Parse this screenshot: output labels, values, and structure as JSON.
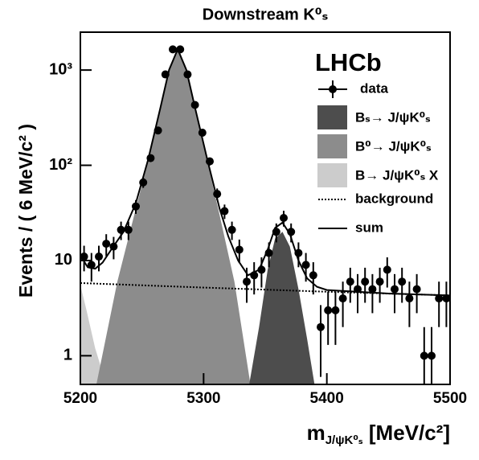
{
  "chart_data": {
    "type": "errorbar",
    "title": "Downstream K⁰ₛ",
    "y_label": "Events / ( 6 MeV/c² )",
    "x_label_symbol": "m",
    "x_label_subscript": "J/ψK⁰ₛ",
    "x_label_unit": " [MeV/c²]",
    "annotation": "LHCb",
    "log_y": true,
    "xlim": [
      5200,
      5500
    ],
    "ylim": [
      0.5,
      2500
    ],
    "xticks": [
      5200,
      5300,
      5400,
      5500
    ],
    "yticks": [
      1,
      10,
      {
        "value": 100,
        "label": "10²"
      },
      {
        "value": 1000,
        "label": "10³"
      }
    ],
    "data": {
      "name": "data",
      "color": "#000000",
      "x": [
        5203,
        5209,
        5215,
        5221,
        5227,
        5233,
        5239,
        5245,
        5251,
        5257,
        5263,
        5269,
        5275,
        5281,
        5287,
        5293,
        5299,
        5305,
        5311,
        5317,
        5323,
        5329,
        5335,
        5341,
        5347,
        5353,
        5359,
        5365,
        5371,
        5377,
        5383,
        5389,
        5395,
        5401,
        5407,
        5413,
        5419,
        5425,
        5431,
        5437,
        5443,
        5449,
        5455,
        5461,
        5467,
        5473,
        5479,
        5485,
        5491,
        5497
      ],
      "values": [
        11,
        9,
        11,
        15,
        14,
        21,
        21,
        37,
        66,
        119,
        232,
        900,
        1650,
        1650,
        900,
        430,
        220,
        110,
        50,
        33,
        21,
        13,
        6,
        7,
        8,
        12,
        20,
        28,
        20,
        12,
        9,
        7,
        2,
        3,
        3,
        4,
        6,
        5,
        6,
        5,
        6,
        8,
        5,
        6,
        4,
        5,
        1,
        1,
        4,
        4
      ],
      "errors": [
        3.3,
        3.0,
        3.3,
        3.9,
        3.7,
        4.6,
        4.6,
        6.1,
        8.1,
        10.9,
        15.2,
        30,
        40.6,
        40.6,
        30,
        20.7,
        14.8,
        10.5,
        7.1,
        5.7,
        4.6,
        3.6,
        2.4,
        2.6,
        2.8,
        3.5,
        4.5,
        5.3,
        4.5,
        3.5,
        3,
        2.6,
        1.4,
        1.7,
        1.7,
        2,
        2.4,
        2.2,
        2.4,
        2.2,
        2.4,
        2.8,
        2.2,
        2.4,
        2,
        2.2,
        1,
        1,
        2,
        2
      ]
    },
    "components": [
      {
        "name": "Bₛ→ J/ψK⁰ₛ",
        "color": "#4d4d4d",
        "x": [
          5337,
          5345,
          5352,
          5358,
          5364,
          5370,
          5377,
          5384,
          5390
        ],
        "values": [
          0.5,
          2,
          8,
          17,
          20,
          14,
          5,
          1.5,
          0.5
        ]
      },
      {
        "name": "B⁰→ J/ψK⁰ₛ",
        "color": "#8c8c8c",
        "x": [
          5213,
          5230,
          5245,
          5255,
          5265,
          5272,
          5279,
          5286,
          5293,
          5303,
          5313,
          5325,
          5338
        ],
        "values": [
          0.5,
          6,
          35,
          110,
          400,
          1000,
          1650,
          1000,
          400,
          110,
          30,
          6,
          0.5
        ]
      },
      {
        "name": "B→ J/ψK⁰ₛ X",
        "color": "#cccccc",
        "x": [
          5200,
          5205,
          5212,
          5221
        ],
        "values": [
          5.5,
          3,
          1.2,
          0.5
        ]
      }
    ],
    "background": {
      "name": "background",
      "color": "#000000",
      "x": [
        5200,
        5300,
        5400,
        5500
      ],
      "values": [
        5.8,
        5.2,
        4.7,
        4.3
      ]
    },
    "sum": {
      "name": "sum",
      "color": "#000000",
      "x": [
        5200,
        5206,
        5212,
        5218,
        5225,
        5235,
        5245,
        5255,
        5265,
        5272,
        5279,
        5286,
        5293,
        5303,
        5313,
        5320,
        5328,
        5336,
        5345,
        5352,
        5358,
        5364,
        5370,
        5377,
        5384,
        5392,
        5400,
        5450,
        5500
      ],
      "values": [
        11.3,
        8.5,
        8.2,
        9.5,
        13,
        20,
        40,
        115,
        405,
        1005,
        1655,
        1005,
        405,
        115,
        35,
        18,
        10,
        7,
        8,
        13,
        22,
        25,
        19,
        10,
        6.5,
        5.3,
        4.9,
        4.5,
        4.3
      ]
    }
  }
}
